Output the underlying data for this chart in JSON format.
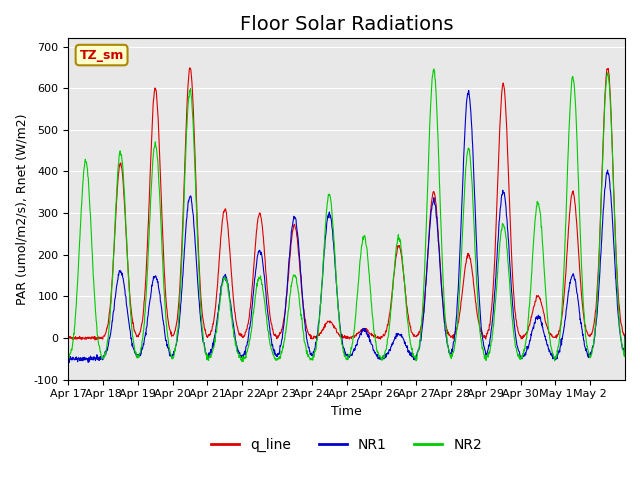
{
  "title": "Floor Solar Radiations",
  "xlabel": "Time",
  "ylabel": "PAR (umol/m2/s), Rnet (W/m2)",
  "ylim": [
    -100,
    720
  ],
  "yticks": [
    -100,
    0,
    100,
    200,
    300,
    400,
    500,
    600,
    700
  ],
  "xtick_labels": [
    "Apr 17",
    "Apr 18",
    "Apr 19",
    "Apr 20",
    "Apr 21",
    "Apr 22",
    "Apr 23",
    "Apr 24",
    "Apr 25",
    "Apr 26",
    "Apr 27",
    "Apr 28",
    "Apr 29",
    "Apr 30",
    "May 1",
    "May 2"
  ],
  "bg_color": "#e8e8e8",
  "fig_color": "#ffffff",
  "legend_items": [
    {
      "label": "q_line",
      "color": "#dd0000"
    },
    {
      "label": "NR1",
      "color": "#0000cc"
    },
    {
      "label": "NR2",
      "color": "#00cc00"
    }
  ],
  "tzlabel": "TZ_sm",
  "tzlabel_color": "#cc0000",
  "tzlabel_bg": "#ffffcc",
  "tzlabel_border": "#aa8800",
  "num_days": 16,
  "pts_per_day": 96,
  "title_fontsize": 14,
  "peak_heights_q": [
    0,
    420,
    600,
    650,
    310,
    300,
    270,
    40,
    20,
    220,
    350,
    200,
    610,
    100,
    350,
    650
  ],
  "peak_heights_NR1": [
    0,
    210,
    200,
    390,
    200,
    260,
    340,
    350,
    70,
    60,
    380,
    640,
    400,
    100,
    200,
    450
  ],
  "peak_heights_NR2": [
    480,
    500,
    520,
    650,
    200,
    200,
    205,
    400,
    300,
    295,
    700,
    510,
    330,
    380,
    680,
    690
  ],
  "night_depth_NR1": 50,
  "night_depth_NR2": 55
}
